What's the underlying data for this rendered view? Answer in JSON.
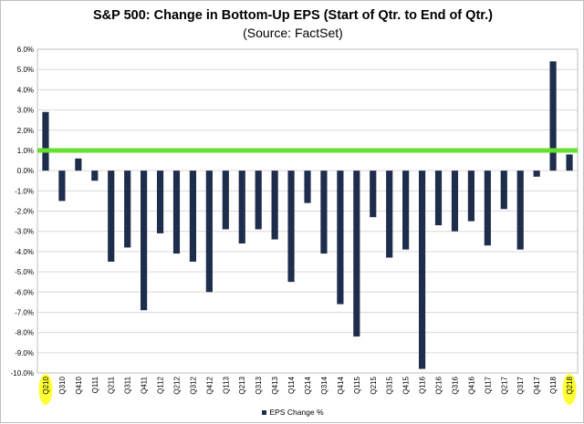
{
  "chart_data": {
    "type": "bar",
    "title": "S&P 500: Change in Bottom-Up EPS (Start of Qtr. to End of Qtr.)",
    "subtitle": "(Source: FactSet)",
    "categories": [
      "Q210",
      "Q310",
      "Q410",
      "Q111",
      "Q211",
      "Q311",
      "Q411",
      "Q112",
      "Q212",
      "Q312",
      "Q412",
      "Q113",
      "Q213",
      "Q313",
      "Q413",
      "Q114",
      "Q214",
      "Q314",
      "Q414",
      "Q115",
      "Q215",
      "Q315",
      "Q415",
      "Q116",
      "Q216",
      "Q316",
      "Q416",
      "Q117",
      "Q217",
      "Q317",
      "Q417",
      "Q118",
      "Q218"
    ],
    "series": [
      {
        "name": "EPS Change %",
        "values": [
          2.9,
          -1.5,
          0.6,
          -0.5,
          -4.5,
          -3.8,
          -6.9,
          -3.1,
          -4.1,
          -4.5,
          -6.0,
          -2.9,
          -3.6,
          -2.9,
          -3.4,
          -5.5,
          -1.6,
          -4.1,
          -6.6,
          -8.2,
          -2.3,
          -4.3,
          -3.9,
          -9.8,
          -2.7,
          -3.0,
          -2.5,
          -3.7,
          -1.9,
          -3.9,
          -0.3,
          5.4,
          0.8
        ],
        "color": "#1f2d4d"
      }
    ],
    "reference_line": {
      "value": 1.0,
      "color": "#66e030"
    },
    "highlighted_categories": [
      "Q210",
      "Q218"
    ],
    "highlight_color": "#ffff33",
    "ylim": [
      -10,
      6
    ],
    "y_ticks": [
      6,
      5,
      4,
      3,
      2,
      1,
      0,
      -1,
      -2,
      -3,
      -4,
      -5,
      -6,
      -7,
      -8,
      -9,
      -10
    ],
    "y_tick_labels": [
      "6.0%",
      "5.0%",
      "4.0%",
      "3.0%",
      "2.0%",
      "1.0%",
      "0.0%",
      "-1.0%",
      "-2.0%",
      "-3.0%",
      "-4.0%",
      "-5.0%",
      "-6.0%",
      "-7.0%",
      "-8.0%",
      "-9.0%",
      "-10.0%"
    ],
    "grid": true,
    "grid_color": "#d9d9d9",
    "legend_position": "bottom",
    "xlabel": "",
    "ylabel": ""
  }
}
